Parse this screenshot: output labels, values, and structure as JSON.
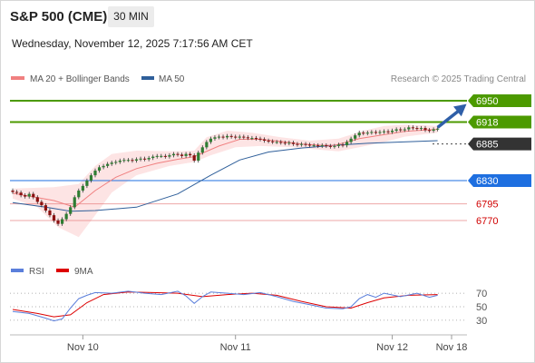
{
  "header": {
    "symbol": "S&P 500 (CME)",
    "timeframe": "30 MIN",
    "datetime": "Wednesday, November 12, 2025 7:17:56 AM CET"
  },
  "legend": {
    "ma20": "MA 20 + Bollinger Bands",
    "ma50": "MA 50",
    "credit": "Research © 2025 Trading Central"
  },
  "rsi_legend": {
    "rsi": "RSI",
    "ma9": "9MA"
  },
  "colors": {
    "up": "#2e7d32",
    "down": "#8b1010",
    "ma20": "#f08080",
    "ma50": "#2f5f9a",
    "bollinger_fill": "#fde4e4",
    "resistance": "#4c9a00",
    "current": "#333333",
    "support": "#1e6fe0",
    "weak_support": "#e06060",
    "rsi": "#5b7fdb",
    "rsi_ma": "#dd0000",
    "arrow": "#2f5fa8"
  },
  "chart_data": [
    {
      "type": "candlestick",
      "title": "S&P 500 (CME) 30 MIN",
      "ylim": [
        6725,
        6965
      ],
      "x_ticks": [
        "Nov 10",
        "Nov 11",
        "Nov 12",
        "Nov 18"
      ],
      "close_series": [
        6813,
        6812,
        6808,
        6806,
        6810,
        6805,
        6798,
        6793,
        6785,
        6778,
        6770,
        6765,
        6772,
        6780,
        6790,
        6805,
        6815,
        6822,
        6830,
        6838,
        6845,
        6850,
        6852,
        6855,
        6857,
        6858,
        6860,
        6861,
        6861,
        6860,
        6862,
        6863,
        6862,
        6864,
        6866,
        6867,
        6867,
        6866,
        6868,
        6870,
        6869,
        6867,
        6870,
        6868,
        6860,
        6872,
        6880,
        6888,
        6893,
        6895,
        6896,
        6895,
        6897,
        6896,
        6895,
        6896,
        6895,
        6894,
        6894,
        6893,
        6892,
        6890,
        6889,
        6888,
        6888,
        6887,
        6886,
        6887,
        6885,
        6884,
        6885,
        6884,
        6883,
        6883,
        6882,
        6883,
        6882,
        6881,
        6882,
        6884,
        6883,
        6888,
        6893,
        6898,
        6902,
        6901,
        6902,
        6903,
        6902,
        6903,
        6904,
        6903,
        6905,
        6907,
        6906,
        6907,
        6910,
        6909,
        6908,
        6909,
        6906,
        6905,
        6907,
        6908
      ],
      "ma20": {
        "name": "MA 20",
        "points": [
          [
            0,
            6811
          ],
          [
            10,
            6800
          ],
          [
            15,
            6790
          ],
          [
            20,
            6815
          ],
          [
            25,
            6835
          ],
          [
            30,
            6848
          ],
          [
            35,
            6856
          ],
          [
            40,
            6862
          ],
          [
            44,
            6866
          ],
          [
            50,
            6882
          ],
          [
            55,
            6892
          ],
          [
            60,
            6892
          ],
          [
            65,
            6889
          ],
          [
            70,
            6885
          ],
          [
            75,
            6883
          ],
          [
            78,
            6883
          ],
          [
            84,
            6893
          ],
          [
            90,
            6899
          ],
          [
            95,
            6904
          ],
          [
            100,
            6906
          ],
          [
            103,
            6907
          ]
        ]
      },
      "ma50": {
        "name": "MA 50",
        "points": [
          [
            0,
            6797
          ],
          [
            8,
            6790
          ],
          [
            14,
            6784
          ],
          [
            20,
            6785
          ],
          [
            30,
            6790
          ],
          [
            40,
            6810
          ],
          [
            48,
            6838
          ],
          [
            55,
            6861
          ],
          [
            62,
            6873
          ],
          [
            70,
            6879
          ],
          [
            78,
            6883
          ],
          [
            86,
            6886
          ],
          [
            94,
            6888
          ],
          [
            103,
            6890
          ]
        ]
      },
      "bollinger": {
        "upper": [
          [
            0,
            6818
          ],
          [
            10,
            6820
          ],
          [
            16,
            6825
          ],
          [
            20,
            6852
          ],
          [
            24,
            6870
          ],
          [
            30,
            6875
          ],
          [
            40,
            6874
          ],
          [
            44,
            6875
          ],
          [
            47,
            6895
          ],
          [
            52,
            6905
          ],
          [
            58,
            6902
          ],
          [
            65,
            6895
          ],
          [
            72,
            6890
          ],
          [
            79,
            6893
          ],
          [
            85,
            6905
          ],
          [
            90,
            6912
          ],
          [
            95,
            6914
          ],
          [
            100,
            6913
          ],
          [
            103,
            6912
          ]
        ],
        "lower": [
          [
            0,
            6803
          ],
          [
            6,
            6790
          ],
          [
            11,
            6760
          ],
          [
            16,
            6745
          ],
          [
            20,
            6778
          ],
          [
            24,
            6812
          ],
          [
            30,
            6838
          ],
          [
            38,
            6852
          ],
          [
            44,
            6858
          ],
          [
            48,
            6868
          ],
          [
            54,
            6880
          ],
          [
            60,
            6882
          ],
          [
            68,
            6880
          ],
          [
            75,
            6876
          ],
          [
            79,
            6874
          ],
          [
            84,
            6880
          ],
          [
            90,
            6888
          ],
          [
            95,
            6896
          ],
          [
            100,
            6900
          ],
          [
            103,
            6902
          ]
        ]
      },
      "levels": [
        {
          "value": 6950,
          "label": "6950",
          "kind": "resistance"
        },
        {
          "value": 6918,
          "label": "6918",
          "kind": "resistance"
        },
        {
          "value": 6885,
          "label": "6885",
          "kind": "current"
        },
        {
          "value": 6830,
          "label": "6830",
          "kind": "support"
        },
        {
          "value": 6795,
          "label": "6795",
          "kind": "weak_support"
        },
        {
          "value": 6770,
          "label": "6770",
          "kind": "weak_support"
        }
      ],
      "forecast_arrow": {
        "from": [
          103,
          6910
        ],
        "to": [
          110,
          6945
        ]
      }
    },
    {
      "type": "line",
      "title": "RSI",
      "ylim": [
        15,
        85
      ],
      "y_ticks": [
        70,
        50,
        30
      ],
      "series": [
        {
          "name": "RSI",
          "values": [
            [
              0,
              43
            ],
            [
              4,
              40
            ],
            [
              8,
              33
            ],
            [
              10,
              29
            ],
            [
              12,
              32
            ],
            [
              14,
              48
            ],
            [
              16,
              62
            ],
            [
              18,
              67
            ],
            [
              20,
              71
            ],
            [
              24,
              70
            ],
            [
              28,
              73
            ],
            [
              32,
              70
            ],
            [
              36,
              68
            ],
            [
              40,
              73
            ],
            [
              42,
              66
            ],
            [
              44,
              55
            ],
            [
              46,
              65
            ],
            [
              48,
              72
            ],
            [
              52,
              70
            ],
            [
              56,
              68
            ],
            [
              60,
              71
            ],
            [
              64,
              65
            ],
            [
              68,
              58
            ],
            [
              72,
              53
            ],
            [
              76,
              48
            ],
            [
              80,
              47
            ],
            [
              82,
              50
            ],
            [
              84,
              62
            ],
            [
              86,
              68
            ],
            [
              88,
              64
            ],
            [
              90,
              70
            ],
            [
              94,
              65
            ],
            [
              98,
              70
            ],
            [
              101,
              64
            ],
            [
              103,
              67
            ]
          ]
        },
        {
          "name": "9MA",
          "values": [
            [
              0,
              46
            ],
            [
              6,
              40
            ],
            [
              10,
              35
            ],
            [
              14,
              38
            ],
            [
              18,
              56
            ],
            [
              22,
              68
            ],
            [
              28,
              72
            ],
            [
              34,
              71
            ],
            [
              40,
              70
            ],
            [
              46,
              65
            ],
            [
              52,
              68
            ],
            [
              58,
              70
            ],
            [
              64,
              67
            ],
            [
              70,
              58
            ],
            [
              76,
              50
            ],
            [
              82,
              48
            ],
            [
              86,
              56
            ],
            [
              90,
              63
            ],
            [
              96,
              67
            ],
            [
              103,
              68
            ]
          ]
        }
      ]
    }
  ]
}
